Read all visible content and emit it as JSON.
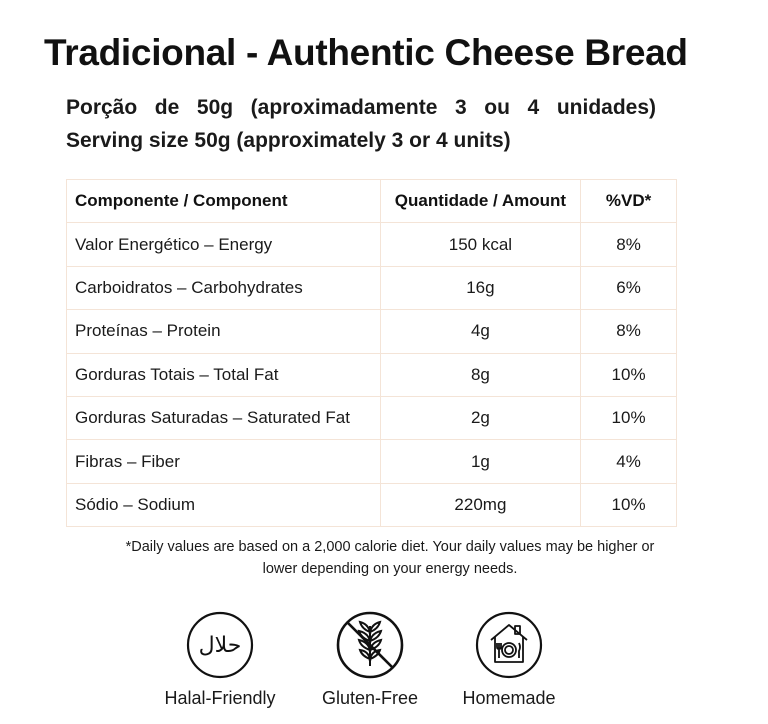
{
  "title": "Tradicional - Authentic Cheese Bread",
  "serving": {
    "pt": "Porção de 50g (aproximadamente 3 ou 4 unidades)",
    "en": "Serving size 50g (approximately 3 or 4 units)"
  },
  "table": {
    "headers": [
      "Componente / Component",
      "Quantidade / Amount",
      "%VD*"
    ],
    "rows": [
      [
        "Valor Energético – Energy",
        "150 kcal",
        "8%"
      ],
      [
        "Carboidratos – Carbohydrates",
        "16g",
        "6%"
      ],
      [
        "Proteínas – Protein",
        "4g",
        "8%"
      ],
      [
        "Gorduras Totais – Total Fat",
        "8g",
        "10%"
      ],
      [
        "Gorduras Saturadas – Saturated Fat",
        "2g",
        "10%"
      ],
      [
        "Fibras – Fiber",
        "1g",
        "4%"
      ],
      [
        "Sódio – Sodium",
        "220mg",
        "10%"
      ]
    ]
  },
  "footnote": {
    "line1": "*Daily values are based on a 2,000 calorie diet. Your daily values may be higher or",
    "line2": "lower depending on your energy needs."
  },
  "badges": [
    {
      "label": "Halal-Friendly",
      "icon": "halal-icon",
      "glyph": "حلال"
    },
    {
      "label": "Gluten-Free",
      "icon": "gluten-free-icon"
    },
    {
      "label": "Homemade",
      "icon": "homemade-icon"
    }
  ],
  "colors": {
    "table_border": "#f4e4d7",
    "text": "#1a1a1a"
  }
}
